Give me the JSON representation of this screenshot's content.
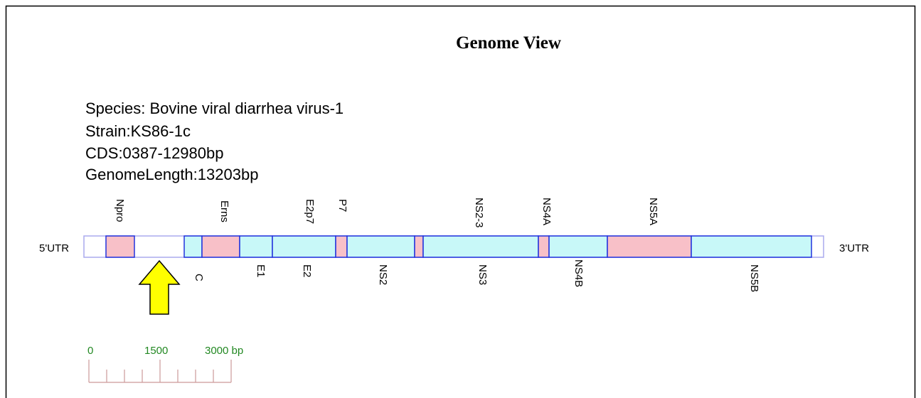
{
  "header": {
    "title": "Genome View"
  },
  "info": [
    "Species: Bovine viral diarrhea virus-1",
    "Strain:KS86-1c",
    "CDS:0387-12980bp",
    "GenomeLength:13203bp"
  ],
  "utr": {
    "left": "5'UTR",
    "right": "3'UTR"
  },
  "labels_above": [
    "Npro",
    "Erns",
    "E2p7",
    "P7",
    "NS2-3",
    "NS4A",
    "NS5A"
  ],
  "labels_below": [
    "C",
    "E1",
    "E2",
    "NS2",
    "NS3",
    "NS4B",
    "NS5B"
  ],
  "scale": {
    "labels": [
      "0",
      "1500",
      "3000 bp"
    ]
  }
}
